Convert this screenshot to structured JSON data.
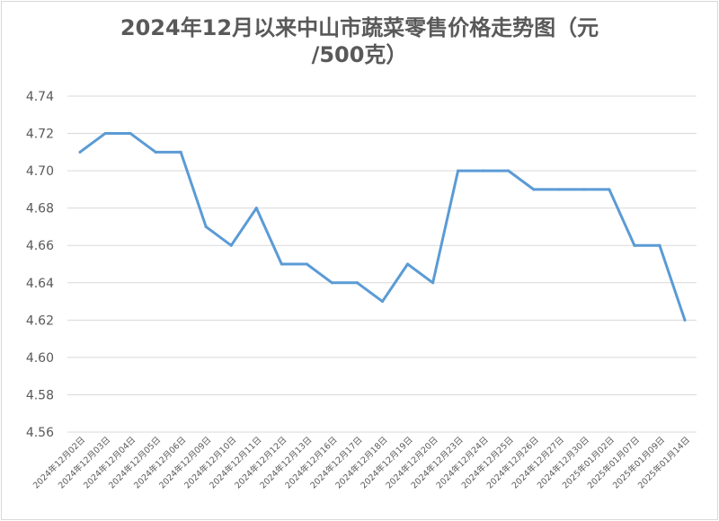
{
  "chart_data": {
    "type": "line",
    "title_line1": "2024年12月以来中山市蔬菜零售价格走势图（元",
    "title_line2": "/500克）",
    "color": "#5b9bd5",
    "grid": true,
    "ylim": [
      4.56,
      4.74
    ],
    "yticks": [
      "4.74",
      "4.72",
      "4.70",
      "4.68",
      "4.66",
      "4.64",
      "4.62",
      "4.60",
      "4.58",
      "4.56"
    ],
    "categories": [
      "2024年12月02日",
      "2024年12月03日",
      "2024年12月04日",
      "2024年12月05日",
      "2024年12月06日",
      "2024年12月09日",
      "2024年12月10日",
      "2024年12月11日",
      "2024年12月12日",
      "2024年12月13日",
      "2024年12月16日",
      "2024年12月17日",
      "2024年12月18日",
      "2024年12月19日",
      "2024年12月20日",
      "2024年12月23日",
      "2024年12月24日",
      "2024年12月25日",
      "2024年12月26日",
      "2024年12月27日",
      "2024年12月30日",
      "2025年01月02日",
      "2025年01月07日",
      "2025年01月09日",
      "2025年01月14日"
    ],
    "values": [
      4.71,
      4.72,
      4.72,
      4.71,
      4.71,
      4.67,
      4.66,
      4.68,
      4.65,
      4.65,
      4.64,
      4.64,
      4.63,
      4.65,
      4.64,
      4.7,
      4.7,
      4.7,
      4.69,
      4.69,
      4.69,
      4.69,
      4.66,
      4.66,
      4.62
    ]
  }
}
